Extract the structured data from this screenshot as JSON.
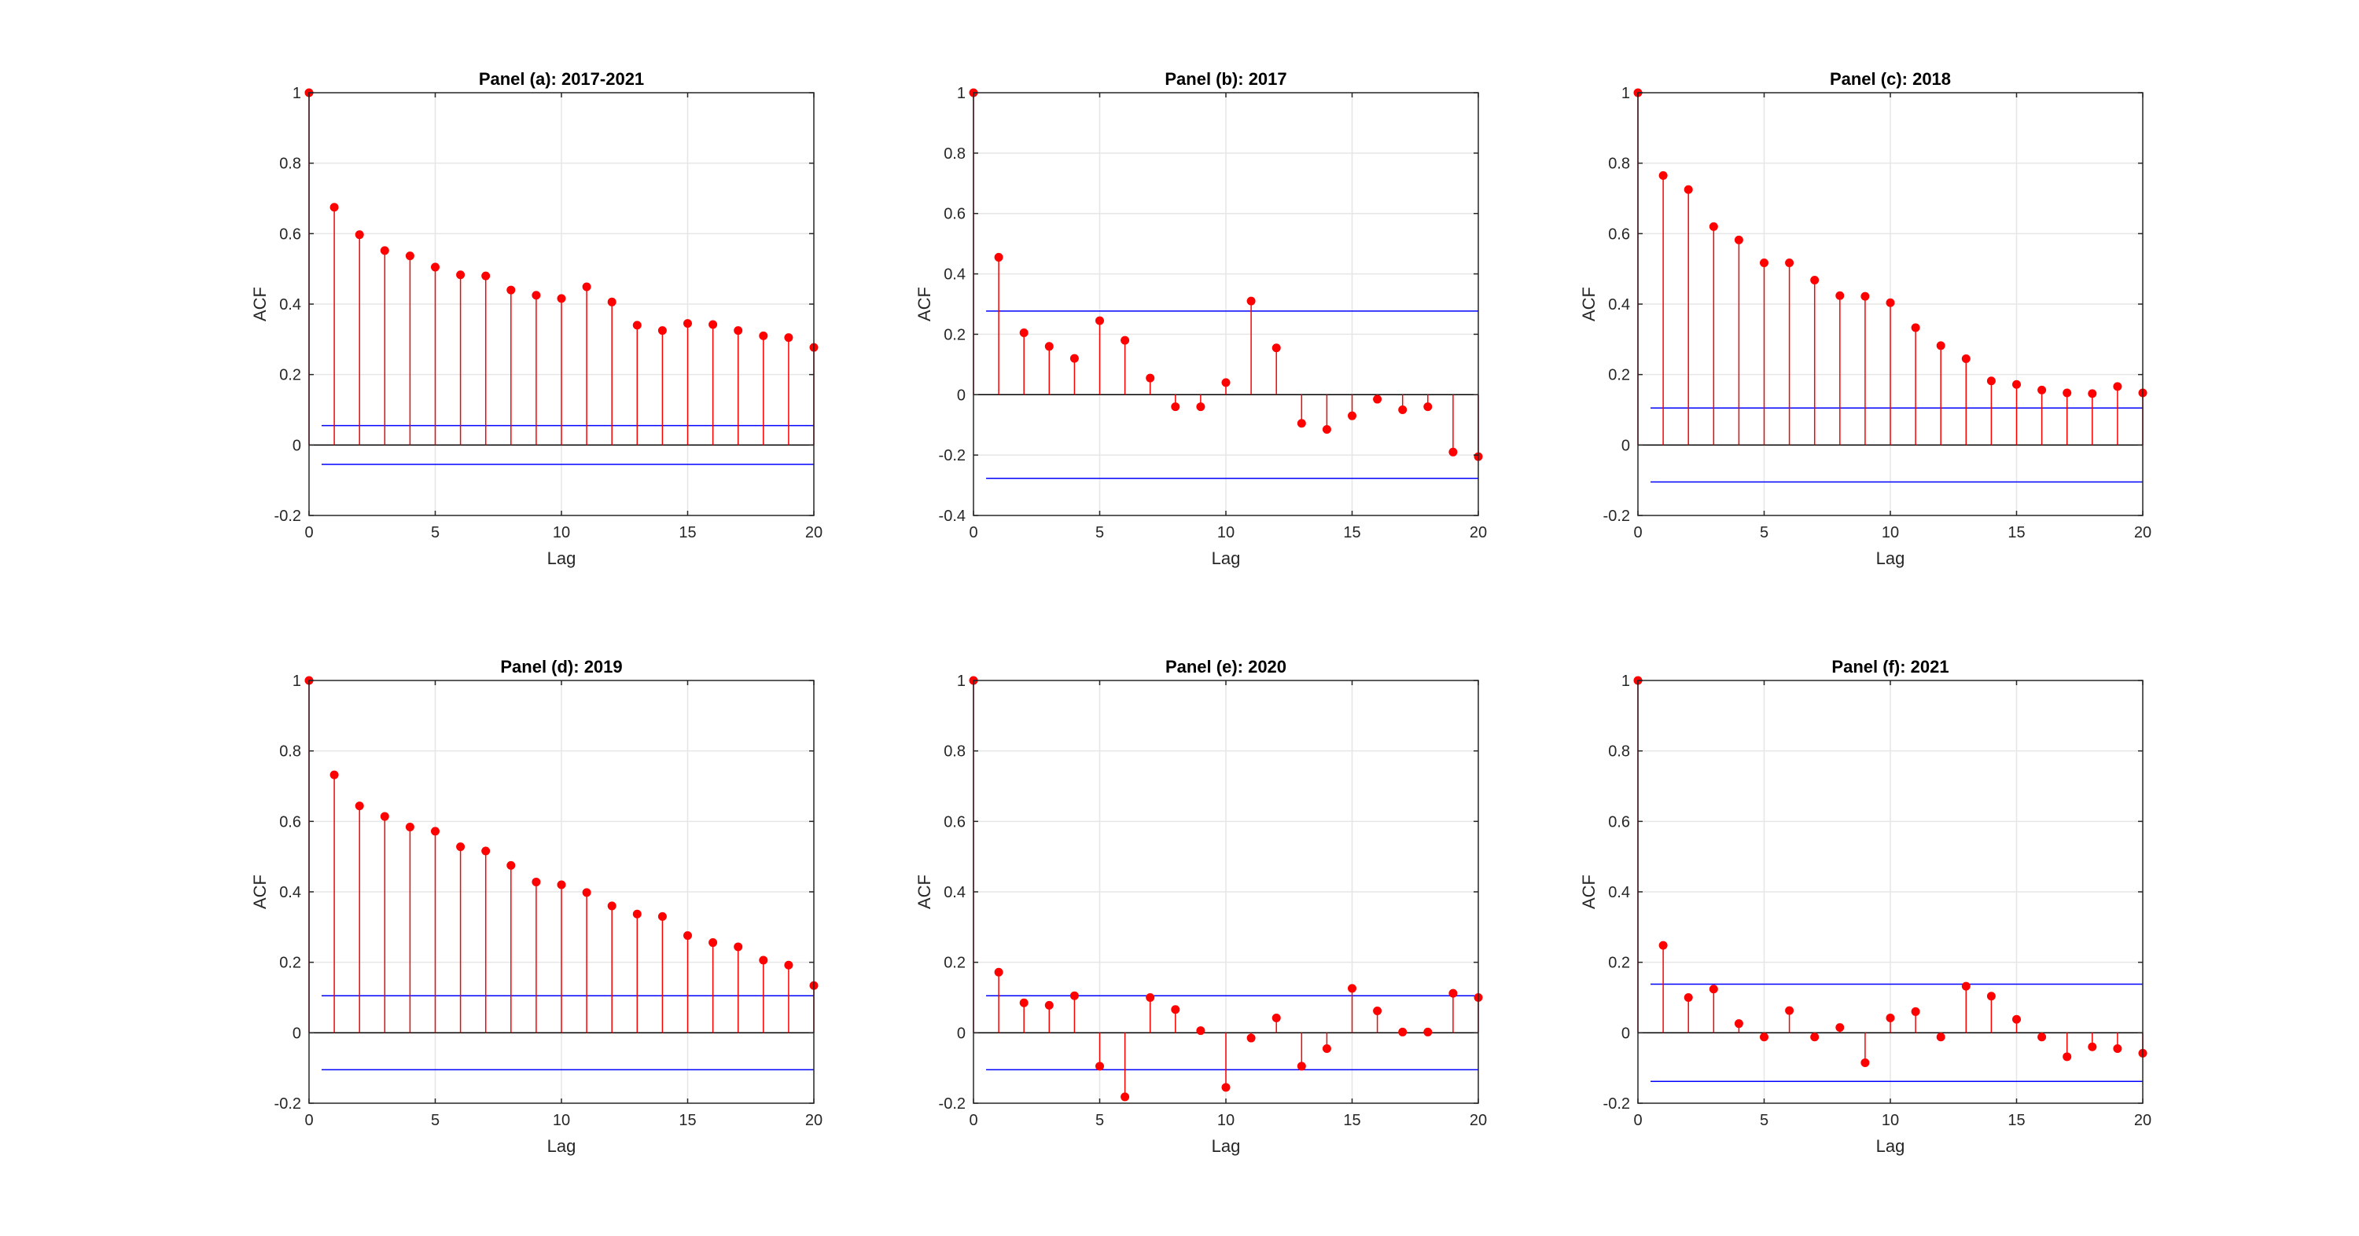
{
  "figure": {
    "colors": {
      "stem": "#ff0000",
      "marker": "#ff0000",
      "bound": "#0000ff",
      "zero": "#000000",
      "grid": "#e6e6e6",
      "axis": "#262626",
      "background": "#ffffff"
    }
  },
  "chart_data": [
    {
      "type": "stem",
      "title": "Panel (a): 2017-2021",
      "xlabel": "Lag",
      "ylabel": "ACF",
      "xlim": [
        0,
        20
      ],
      "ylim": [
        -0.2,
        1
      ],
      "xticks": [
        0,
        5,
        10,
        15,
        20
      ],
      "xtick_labels": [
        "0",
        "5",
        "10",
        "15",
        "20"
      ],
      "yticks": [
        -0.2,
        0,
        0.2,
        0.4,
        0.6,
        0.8,
        1
      ],
      "ytick_labels": [
        "-0.2",
        "0",
        "0.2",
        "0.4",
        "0.6",
        "0.8",
        "1"
      ],
      "grid": true,
      "lags": [
        0,
        1,
        2,
        3,
        4,
        5,
        6,
        7,
        8,
        9,
        10,
        11,
        12,
        13,
        14,
        15,
        16,
        17,
        18,
        19,
        20
      ],
      "acf": [
        1,
        0.675,
        0.597,
        0.552,
        0.537,
        0.505,
        0.483,
        0.48,
        0.44,
        0.425,
        0.416,
        0.449,
        0.406,
        0.34,
        0.325,
        0.345,
        0.342,
        0.325,
        0.31,
        0.305,
        0.277
      ],
      "bounds": [
        0.055,
        -0.055
      ]
    },
    {
      "type": "stem",
      "title": "Panel (b): 2017",
      "xlabel": "Lag",
      "ylabel": "ACF",
      "xlim": [
        0,
        20
      ],
      "ylim": [
        -0.4,
        1
      ],
      "xticks": [
        0,
        5,
        10,
        15,
        20
      ],
      "xtick_labels": [
        "0",
        "5",
        "10",
        "15",
        "20"
      ],
      "yticks": [
        -0.4,
        -0.2,
        0,
        0.2,
        0.4,
        0.6,
        0.8,
        1
      ],
      "ytick_labels": [
        "-0.4",
        "-0.2",
        "0",
        "0.2",
        "0.4",
        "0.6",
        "0.8",
        "1"
      ],
      "grid": true,
      "lags": [
        0,
        1,
        2,
        3,
        4,
        5,
        6,
        7,
        8,
        9,
        10,
        11,
        12,
        13,
        14,
        15,
        16,
        17,
        18,
        19,
        20
      ],
      "acf": [
        1,
        0.455,
        0.205,
        0.16,
        0.12,
        0.245,
        0.18,
        0.055,
        -0.04,
        -0.04,
        0.04,
        0.31,
        0.155,
        -0.095,
        -0.115,
        -0.07,
        -0.015,
        -0.05,
        -0.04,
        -0.19,
        -0.205
      ],
      "bounds": [
        0.277,
        -0.277
      ]
    },
    {
      "type": "stem",
      "title": "Panel (c): 2018",
      "xlabel": "Lag",
      "ylabel": "ACF",
      "xlim": [
        0,
        20
      ],
      "ylim": [
        -0.2,
        1
      ],
      "xticks": [
        0,
        5,
        10,
        15,
        20
      ],
      "xtick_labels": [
        "0",
        "5",
        "10",
        "15",
        "20"
      ],
      "yticks": [
        -0.2,
        0,
        0.2,
        0.4,
        0.6,
        0.8,
        1
      ],
      "ytick_labels": [
        "-0.2",
        "0",
        "0.2",
        "0.4",
        "0.6",
        "0.8",
        "1"
      ],
      "grid": true,
      "lags": [
        0,
        1,
        2,
        3,
        4,
        5,
        6,
        7,
        8,
        9,
        10,
        11,
        12,
        13,
        14,
        15,
        16,
        17,
        18,
        19,
        20
      ],
      "acf": [
        1,
        0.765,
        0.725,
        0.62,
        0.582,
        0.517,
        0.517,
        0.468,
        0.424,
        0.422,
        0.404,
        0.333,
        0.282,
        0.245,
        0.182,
        0.172,
        0.156,
        0.148,
        0.146,
        0.166,
        0.148
      ],
      "bounds": [
        0.105,
        -0.105
      ]
    },
    {
      "type": "stem",
      "title": "Panel (d): 2019",
      "xlabel": "Lag",
      "ylabel": "ACF",
      "xlim": [
        0,
        20
      ],
      "ylim": [
        -0.2,
        1
      ],
      "xticks": [
        0,
        5,
        10,
        15,
        20
      ],
      "xtick_labels": [
        "0",
        "5",
        "10",
        "15",
        "20"
      ],
      "yticks": [
        -0.2,
        0,
        0.2,
        0.4,
        0.6,
        0.8,
        1
      ],
      "ytick_labels": [
        "-0.2",
        "0",
        "0.2",
        "0.4",
        "0.6",
        "0.8",
        "1"
      ],
      "grid": true,
      "lags": [
        0,
        1,
        2,
        3,
        4,
        5,
        6,
        7,
        8,
        9,
        10,
        11,
        12,
        13,
        14,
        15,
        16,
        17,
        18,
        19,
        20
      ],
      "acf": [
        1,
        0.732,
        0.644,
        0.614,
        0.584,
        0.572,
        0.528,
        0.516,
        0.475,
        0.428,
        0.42,
        0.398,
        0.36,
        0.337,
        0.33,
        0.276,
        0.256,
        0.244,
        0.206,
        0.192,
        0.134
      ],
      "bounds": [
        0.105,
        -0.105
      ]
    },
    {
      "type": "stem",
      "title": "Panel (e): 2020",
      "xlabel": "Lag",
      "ylabel": "ACF",
      "xlim": [
        0,
        20
      ],
      "ylim": [
        -0.2,
        1
      ],
      "xticks": [
        0,
        5,
        10,
        15,
        20
      ],
      "xtick_labels": [
        "0",
        "5",
        "10",
        "15",
        "20"
      ],
      "yticks": [
        -0.2,
        0,
        0.2,
        0.4,
        0.6,
        0.8,
        1
      ],
      "ytick_labels": [
        "-0.2",
        "0",
        "0.2",
        "0.4",
        "0.6",
        "0.8",
        "1"
      ],
      "grid": true,
      "lags": [
        0,
        1,
        2,
        3,
        4,
        5,
        6,
        7,
        8,
        9,
        10,
        11,
        12,
        13,
        14,
        15,
        16,
        17,
        18,
        19,
        20
      ],
      "acf": [
        1,
        0.172,
        0.085,
        0.078,
        0.105,
        -0.095,
        -0.182,
        0.1,
        0.066,
        0.006,
        -0.155,
        -0.015,
        0.042,
        -0.095,
        -0.045,
        0.126,
        0.062,
        0.002,
        0.002,
        0.112,
        0.1
      ],
      "bounds": [
        0.105,
        -0.105
      ]
    },
    {
      "type": "stem",
      "title": "Panel (f): 2021",
      "xlabel": "Lag",
      "ylabel": "ACF",
      "xlim": [
        0,
        20
      ],
      "ylim": [
        -0.2,
        1
      ],
      "xticks": [
        0,
        5,
        10,
        15,
        20
      ],
      "xtick_labels": [
        "0",
        "5",
        "10",
        "15",
        "20"
      ],
      "yticks": [
        -0.2,
        0,
        0.2,
        0.4,
        0.6,
        0.8,
        1
      ],
      "ytick_labels": [
        "-0.2",
        "0",
        "0.2",
        "0.4",
        "0.6",
        "0.8",
        "1"
      ],
      "grid": true,
      "lags": [
        0,
        1,
        2,
        3,
        4,
        5,
        6,
        7,
        8,
        9,
        10,
        11,
        12,
        13,
        14,
        15,
        16,
        17,
        18,
        19,
        20
      ],
      "acf": [
        1,
        0.248,
        0.1,
        0.124,
        0.026,
        -0.012,
        0.063,
        -0.012,
        0.015,
        -0.085,
        0.042,
        0.06,
        -0.012,
        0.132,
        0.104,
        0.038,
        -0.012,
        -0.068,
        -0.04,
        -0.045,
        -0.058
      ],
      "bounds": [
        0.138,
        -0.138
      ]
    }
  ]
}
